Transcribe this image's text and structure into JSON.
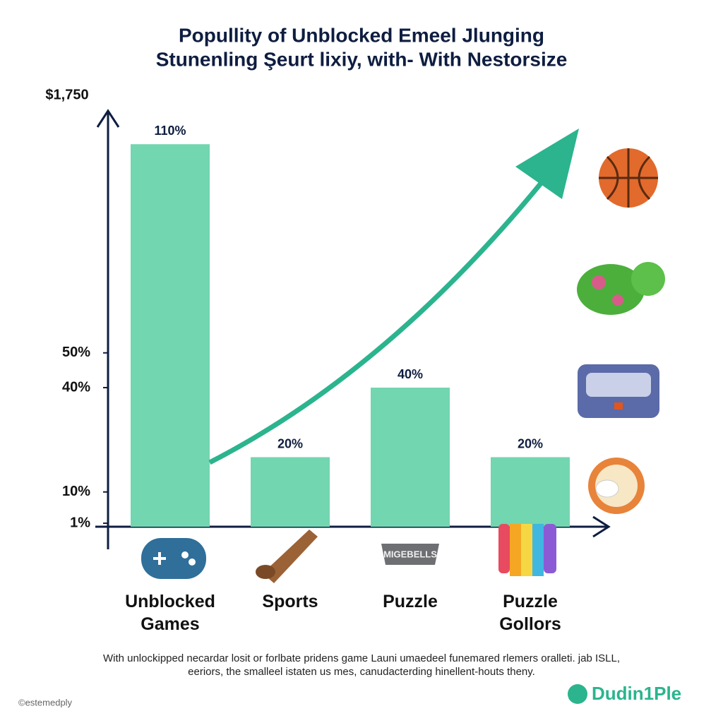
{
  "chart_data": {
    "type": "bar",
    "title": "Popullity of Unblocked Emeel Jlunging",
    "subtitle": "Stunenling Şeurt lixiy, with- With Nestorsize",
    "y_label": "$1,750",
    "categories": [
      "Unblocked Games",
      "Sports",
      "Puzzle",
      "Puzzle Gollors"
    ],
    "values": [
      110,
      20,
      40,
      20
    ],
    "value_labels": [
      "110%",
      "20%",
      "40%",
      "20%"
    ],
    "color": "#72d6b0",
    "trend_color": "#2bb48e",
    "ylim": [
      0,
      120
    ],
    "yticks": [
      {
        "value": 1,
        "label": "1%"
      },
      {
        "value": 10,
        "label": "10%"
      },
      {
        "value": 40,
        "label": "40%"
      },
      {
        "value": 50,
        "label": "50%"
      }
    ],
    "grid": false,
    "badge_text": "MIGEBELLS",
    "footnote": [
      "With unlockipped necardar losit or forlbate pridens game Launi umaedeel funemared rlemers oralleti. jab ISLL,",
      "eeriors, the smalleel istaten us mes, canudacterding hinellent-houts theny."
    ],
    "credit": "©estemedply",
    "brand": "Dudin1Ple"
  }
}
